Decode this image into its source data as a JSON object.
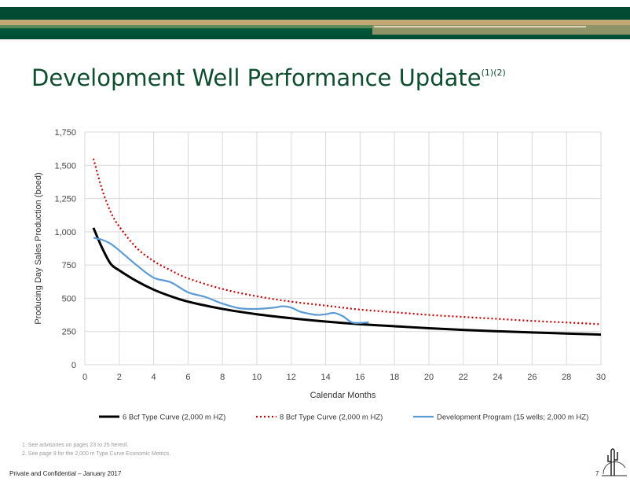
{
  "title": "Development Well Performance Update",
  "title_superscript": "(1)(2)",
  "notes": [
    "1.   See advisories on pages 23 to 25 hereof.",
    "2.   See page 9 for the 2,000 m Type Curve Economic Metrics."
  ],
  "footer": "Private and Confidential – January 2017",
  "page_number": "7",
  "logo": "cactus-logo",
  "colors": {
    "brand_green": "#004b32",
    "brand_tan": "#c1a874",
    "series1": "#000000",
    "series2": "#c00000",
    "series3": "#5b9bd5"
  },
  "chart_data": {
    "type": "line",
    "title": "",
    "xlabel": "Calendar Months",
    "ylabel": "Producing Day Sales Production (boed)",
    "xlim": [
      0,
      30
    ],
    "ylim": [
      0,
      1750
    ],
    "xticks": [
      "0",
      "2",
      "4",
      "6",
      "8",
      "10",
      "12",
      "14",
      "16",
      "18",
      "20",
      "22",
      "24",
      "26",
      "28",
      "30"
    ],
    "yticks": [
      "0",
      "250",
      "500",
      "750",
      "1,000",
      "1,250",
      "1,500",
      "1,750"
    ],
    "grid": true,
    "legend_position": "bottom",
    "series": [
      {
        "name": "6 Bcf Type Curve (2,000 m HZ)",
        "style": "solid",
        "x": [
          0.5,
          1,
          1.5,
          2,
          3,
          4,
          5,
          6,
          8,
          10,
          12,
          14,
          16,
          18,
          20,
          22,
          24,
          26,
          28,
          30
        ],
        "y": [
          1030,
          880,
          760,
          710,
          630,
          565,
          515,
          475,
          420,
          380,
          350,
          325,
          305,
          290,
          275,
          262,
          252,
          243,
          235,
          227
        ]
      },
      {
        "name": "8 Bcf Type Curve (2,000 m HZ)",
        "style": "dotted",
        "x": [
          0.5,
          1,
          1.5,
          2,
          3,
          4,
          5,
          6,
          8,
          10,
          12,
          14,
          16,
          18,
          20,
          22,
          24,
          26,
          28,
          30
        ],
        "y": [
          1550,
          1320,
          1150,
          1040,
          880,
          780,
          710,
          650,
          570,
          515,
          475,
          445,
          415,
          395,
          375,
          360,
          345,
          330,
          318,
          305
        ]
      },
      {
        "name": "Development Program (15 wells; 2,000 m HZ)",
        "style": "solid",
        "x": [
          0.5,
          1,
          1.5,
          2,
          3,
          4,
          5,
          6,
          7,
          8,
          9,
          10,
          11,
          11.5,
          12,
          12.5,
          13,
          13.5,
          14,
          14.5,
          15,
          15.5,
          16,
          16.5
        ],
        "y": [
          955,
          940,
          910,
          860,
          750,
          655,
          620,
          545,
          510,
          460,
          425,
          420,
          430,
          440,
          430,
          400,
          385,
          375,
          380,
          390,
          365,
          320,
          315,
          320
        ]
      }
    ]
  }
}
